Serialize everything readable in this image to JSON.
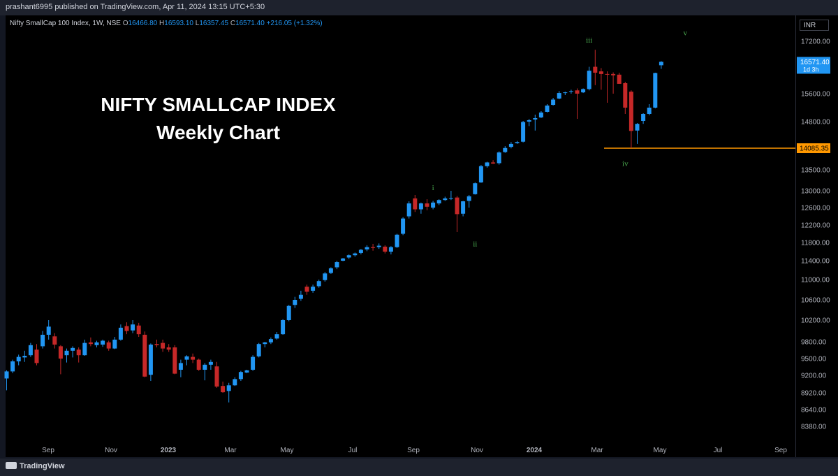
{
  "header": {
    "published_text": "prashant6995 published on TradingView.com, Apr 11, 2024 13:15 UTC+5:30"
  },
  "legend": {
    "symbol": "Nifty SmallCap 100 Index, 1W, NSE",
    "o_label": "O",
    "o_value": "16466.80",
    "h_label": "H",
    "h_value": "16593.10",
    "l_label": "L",
    "l_value": "16357.45",
    "c_label": "C",
    "c_value": "16571.40",
    "change": "+216.05 (+1.32%)"
  },
  "currency": "INR",
  "annotation": {
    "line1": "NIFTY SMALLCAP INDEX",
    "line2": "Weekly Chart"
  },
  "footer": {
    "brand": "TradingView"
  },
  "chart_data": {
    "type": "candlestick",
    "interval": "weekly",
    "x_tick_labels": [
      "Sep",
      "Nov",
      "2023",
      "Mar",
      "May",
      "Jul",
      "Sep",
      "Nov",
      "2024",
      "Mar",
      "May",
      "Jul",
      "Sep"
    ],
    "y_tick_labels": [
      "17200.00",
      "15600.00",
      "14800.00",
      "13500.00",
      "13000.00",
      "12600.00",
      "12200.00",
      "11800.00",
      "11400.00",
      "11000.00",
      "10600.00",
      "10200.00",
      "9800.00",
      "9500.00",
      "9200.00",
      "8920.00",
      "8640.00",
      "8380.00"
    ],
    "ylim": [
      8200,
      17800
    ],
    "colors": {
      "up": "#2196f3",
      "down": "#c62828",
      "wave_label": "#4caf50",
      "level": "#ff9800",
      "price_tag": "#2196f3"
    },
    "last_price": {
      "value": "16571.40",
      "countdown": "1d 3h"
    },
    "support_level": {
      "value": "14085.35"
    },
    "wave_labels": [
      {
        "text": "i",
        "at_price": 13080,
        "week": 71
      },
      {
        "text": "ii",
        "at_price": 11780,
        "week": 78
      },
      {
        "text": "iii",
        "at_price": 17260,
        "week": 97
      },
      {
        "text": "iv",
        "at_price": 13680,
        "week": 103
      },
      {
        "text": "v",
        "at_price": 17600,
        "week": 113
      }
    ],
    "candles": [
      {
        "o": 9150,
        "h": 9290,
        "l": 8960,
        "c": 9270
      },
      {
        "o": 9270,
        "h": 9480,
        "l": 9240,
        "c": 9450
      },
      {
        "o": 9450,
        "h": 9570,
        "l": 9380,
        "c": 9530
      },
      {
        "o": 9520,
        "h": 9640,
        "l": 9440,
        "c": 9550
      },
      {
        "o": 9560,
        "h": 9780,
        "l": 9530,
        "c": 9740
      },
      {
        "o": 9660,
        "h": 9760,
        "l": 9380,
        "c": 9420
      },
      {
        "o": 9720,
        "h": 10000,
        "l": 9680,
        "c": 9930
      },
      {
        "o": 9930,
        "h": 10200,
        "l": 9840,
        "c": 10080
      },
      {
        "o": 9900,
        "h": 9960,
        "l": 9680,
        "c": 9750
      },
      {
        "o": 9720,
        "h": 9740,
        "l": 9220,
        "c": 9500
      },
      {
        "o": 9560,
        "h": 9680,
        "l": 9430,
        "c": 9640
      },
      {
        "o": 9640,
        "h": 9720,
        "l": 9520,
        "c": 9690
      },
      {
        "o": 9660,
        "h": 9700,
        "l": 9430,
        "c": 9560
      },
      {
        "o": 9560,
        "h": 9840,
        "l": 9550,
        "c": 9780
      },
      {
        "o": 9790,
        "h": 9880,
        "l": 9720,
        "c": 9760
      },
      {
        "o": 9740,
        "h": 9820,
        "l": 9700,
        "c": 9790
      },
      {
        "o": 9750,
        "h": 9840,
        "l": 9710,
        "c": 9820
      },
      {
        "o": 9790,
        "h": 9820,
        "l": 9640,
        "c": 9680
      },
      {
        "o": 9680,
        "h": 9890,
        "l": 9670,
        "c": 9840
      },
      {
        "o": 9840,
        "h": 10120,
        "l": 9820,
        "c": 10060
      },
      {
        "o": 10090,
        "h": 10160,
        "l": 9940,
        "c": 10000
      },
      {
        "o": 10010,
        "h": 10200,
        "l": 9960,
        "c": 10120
      },
      {
        "o": 10100,
        "h": 10150,
        "l": 9890,
        "c": 9940
      },
      {
        "o": 9930,
        "h": 9990,
        "l": 9170,
        "c": 9180
      },
      {
        "o": 9210,
        "h": 9770,
        "l": 9110,
        "c": 9750
      },
      {
        "o": 9760,
        "h": 9840,
        "l": 9700,
        "c": 9740
      },
      {
        "o": 9780,
        "h": 9840,
        "l": 9620,
        "c": 9680
      },
      {
        "o": 9700,
        "h": 9760,
        "l": 9620,
        "c": 9660
      },
      {
        "o": 9700,
        "h": 9740,
        "l": 9220,
        "c": 9230
      },
      {
        "o": 9300,
        "h": 9480,
        "l": 9170,
        "c": 9420
      },
      {
        "o": 9480,
        "h": 9560,
        "l": 9380,
        "c": 9540
      },
      {
        "o": 9530,
        "h": 9590,
        "l": 9420,
        "c": 9480
      },
      {
        "o": 9480,
        "h": 9500,
        "l": 9280,
        "c": 9300
      },
      {
        "o": 9300,
        "h": 9420,
        "l": 9120,
        "c": 9390
      },
      {
        "o": 9390,
        "h": 9480,
        "l": 9300,
        "c": 9440
      },
      {
        "o": 9360,
        "h": 9440,
        "l": 9000,
        "c": 9020
      },
      {
        "o": 9030,
        "h": 9100,
        "l": 8920,
        "c": 8930
      },
      {
        "o": 8950,
        "h": 9080,
        "l": 8760,
        "c": 9040
      },
      {
        "o": 9040,
        "h": 9170,
        "l": 9030,
        "c": 9140
      },
      {
        "o": 9140,
        "h": 9280,
        "l": 9110,
        "c": 9260
      },
      {
        "o": 9250,
        "h": 9300,
        "l": 9240,
        "c": 9290
      },
      {
        "o": 9300,
        "h": 9560,
        "l": 9280,
        "c": 9530
      },
      {
        "o": 9540,
        "h": 9780,
        "l": 9520,
        "c": 9760
      },
      {
        "o": 9760,
        "h": 9800,
        "l": 9700,
        "c": 9790
      },
      {
        "o": 9790,
        "h": 9880,
        "l": 9760,
        "c": 9850
      },
      {
        "o": 9860,
        "h": 9980,
        "l": 9840,
        "c": 9940
      },
      {
        "o": 9940,
        "h": 10220,
        "l": 9930,
        "c": 10200
      },
      {
        "o": 10200,
        "h": 10500,
        "l": 10180,
        "c": 10480
      },
      {
        "o": 10500,
        "h": 10660,
        "l": 10440,
        "c": 10600
      },
      {
        "o": 10620,
        "h": 10780,
        "l": 10580,
        "c": 10700
      },
      {
        "o": 10860,
        "h": 10900,
        "l": 10700,
        "c": 10760
      },
      {
        "o": 10780,
        "h": 10900,
        "l": 10740,
        "c": 10860
      },
      {
        "o": 10870,
        "h": 11000,
        "l": 10840,
        "c": 10970
      },
      {
        "o": 10990,
        "h": 11160,
        "l": 10960,
        "c": 11130
      },
      {
        "o": 11140,
        "h": 11260,
        "l": 11120,
        "c": 11240
      },
      {
        "o": 11260,
        "h": 11400,
        "l": 11220,
        "c": 11370
      },
      {
        "o": 11400,
        "h": 11460,
        "l": 11390,
        "c": 11450
      },
      {
        "o": 11470,
        "h": 11540,
        "l": 11440,
        "c": 11520
      },
      {
        "o": 11520,
        "h": 11580,
        "l": 11490,
        "c": 11560
      },
      {
        "o": 11570,
        "h": 11660,
        "l": 11540,
        "c": 11640
      },
      {
        "o": 11650,
        "h": 11740,
        "l": 11610,
        "c": 11700
      },
      {
        "o": 11700,
        "h": 11770,
        "l": 11620,
        "c": 11680
      },
      {
        "o": 11700,
        "h": 11780,
        "l": 11660,
        "c": 11730
      },
      {
        "o": 11710,
        "h": 11740,
        "l": 11560,
        "c": 11600
      },
      {
        "o": 11600,
        "h": 11720,
        "l": 11540,
        "c": 11700
      },
      {
        "o": 11700,
        "h": 12000,
        "l": 11680,
        "c": 11980
      },
      {
        "o": 12000,
        "h": 12380,
        "l": 11970,
        "c": 12350
      },
      {
        "o": 12400,
        "h": 12750,
        "l": 12350,
        "c": 12700
      },
      {
        "o": 12820,
        "h": 12900,
        "l": 12500,
        "c": 12560
      },
      {
        "o": 12560,
        "h": 12720,
        "l": 12460,
        "c": 12700
      },
      {
        "o": 12700,
        "h": 12800,
        "l": 12540,
        "c": 12620
      },
      {
        "o": 12600,
        "h": 12760,
        "l": 12560,
        "c": 12720
      },
      {
        "o": 12700,
        "h": 12800,
        "l": 12660,
        "c": 12780
      },
      {
        "o": 12780,
        "h": 12860,
        "l": 12760,
        "c": 12820
      },
      {
        "o": 12820,
        "h": 13000,
        "l": 12780,
        "c": 12830
      },
      {
        "o": 12840,
        "h": 12880,
        "l": 12040,
        "c": 12450
      },
      {
        "o": 12460,
        "h": 12760,
        "l": 12400,
        "c": 12750
      },
      {
        "o": 12760,
        "h": 12900,
        "l": 12600,
        "c": 12870
      },
      {
        "o": 12920,
        "h": 13200,
        "l": 12910,
        "c": 13180
      },
      {
        "o": 13200,
        "h": 13630,
        "l": 13190,
        "c": 13600
      },
      {
        "o": 13600,
        "h": 13720,
        "l": 13560,
        "c": 13700
      },
      {
        "o": 13700,
        "h": 13760,
        "l": 13660,
        "c": 13670
      },
      {
        "o": 13680,
        "h": 14000,
        "l": 13640,
        "c": 13970
      },
      {
        "o": 13980,
        "h": 14140,
        "l": 13960,
        "c": 14090
      },
      {
        "o": 14120,
        "h": 14250,
        "l": 14080,
        "c": 14200
      },
      {
        "o": 14220,
        "h": 14280,
        "l": 14200,
        "c": 14250
      },
      {
        "o": 14260,
        "h": 14820,
        "l": 14240,
        "c": 14790
      },
      {
        "o": 14800,
        "h": 14880,
        "l": 14680,
        "c": 14840
      },
      {
        "o": 14860,
        "h": 15000,
        "l": 14560,
        "c": 14900
      },
      {
        "o": 14920,
        "h": 15100,
        "l": 14900,
        "c": 15060
      },
      {
        "o": 15080,
        "h": 15300,
        "l": 15060,
        "c": 15260
      },
      {
        "o": 15280,
        "h": 15480,
        "l": 15260,
        "c": 15430
      },
      {
        "o": 15460,
        "h": 15680,
        "l": 15440,
        "c": 15620
      },
      {
        "o": 15620,
        "h": 15660,
        "l": 15560,
        "c": 15640
      },
      {
        "o": 15680,
        "h": 15720,
        "l": 15600,
        "c": 15680
      },
      {
        "o": 15700,
        "h": 15760,
        "l": 14880,
        "c": 15600
      },
      {
        "o": 15640,
        "h": 15760,
        "l": 15620,
        "c": 15740
      },
      {
        "o": 15740,
        "h": 16420,
        "l": 15700,
        "c": 16300
      },
      {
        "o": 16420,
        "h": 16940,
        "l": 15860,
        "c": 16240
      },
      {
        "o": 16280,
        "h": 16380,
        "l": 15720,
        "c": 16200
      },
      {
        "o": 16200,
        "h": 16280,
        "l": 15340,
        "c": 16190
      },
      {
        "o": 16200,
        "h": 16250,
        "l": 15600,
        "c": 16160
      },
      {
        "o": 16180,
        "h": 16240,
        "l": 15960,
        "c": 15900
      },
      {
        "o": 15920,
        "h": 15960,
        "l": 15020,
        "c": 15200
      },
      {
        "o": 15660,
        "h": 15700,
        "l": 14085,
        "c": 14550
      },
      {
        "o": 14560,
        "h": 14760,
        "l": 14200,
        "c": 14740
      },
      {
        "o": 14820,
        "h": 15040,
        "l": 14740,
        "c": 15020
      },
      {
        "o": 15020,
        "h": 15300,
        "l": 14980,
        "c": 15200
      },
      {
        "o": 15200,
        "h": 16240,
        "l": 15180,
        "c": 16230
      },
      {
        "o": 16466.8,
        "h": 16593.1,
        "l": 16357.45,
        "c": 16571.4
      }
    ]
  }
}
